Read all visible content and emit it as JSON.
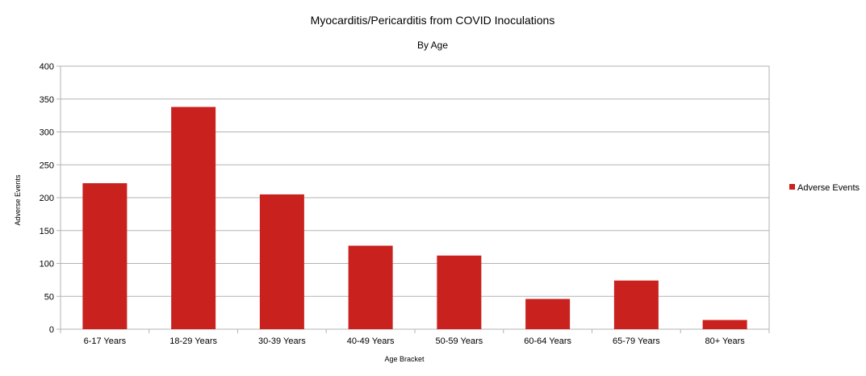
{
  "chart_data": {
    "type": "bar",
    "title": "Myocarditis/Pericarditis from COVID Inoculations",
    "subtitle": "By Age",
    "xlabel": "Age Bracket",
    "ylabel": "Adverse Events",
    "categories": [
      "6-17 Years",
      "18-29 Years",
      "30-39 Years",
      "40-49 Years",
      "50-59 Years",
      "60-64 Years",
      "65-79 Years",
      "80+ Years"
    ],
    "series": [
      {
        "name": "Adverse Events",
        "color": "#c9211e",
        "values": [
          222,
          338,
          205,
          127,
          112,
          46,
          74,
          14
        ]
      }
    ],
    "ylim": [
      0,
      400
    ],
    "yticks": [
      0,
      50,
      100,
      150,
      200,
      250,
      300,
      350,
      400
    ],
    "grid": true,
    "legend": "right"
  }
}
